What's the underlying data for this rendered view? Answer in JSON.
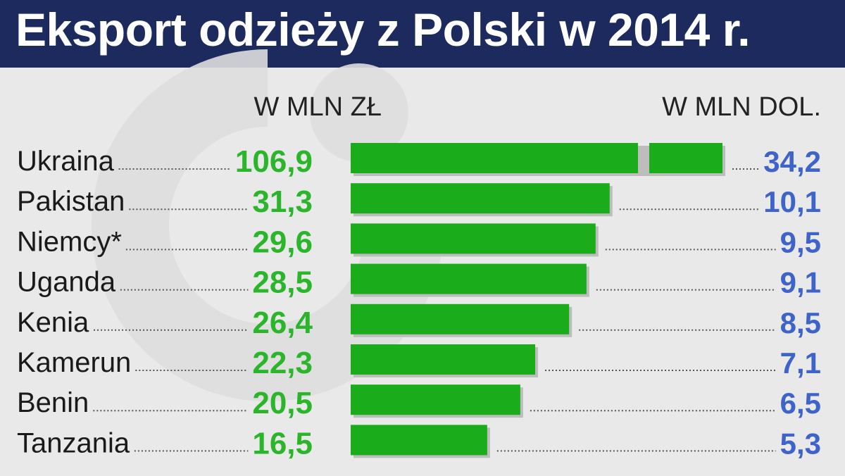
{
  "header": {
    "title": "Eksport odzieży z Polski w 2014 r."
  },
  "colors": {
    "header_bg": "#1c2a5e",
    "bar": "#1aac1a",
    "pln_value": "#2bb52b",
    "usd_value": "#3e63c9",
    "background": "#e9e9e9"
  },
  "chart_data": {
    "type": "bar",
    "orientation": "horizontal",
    "columns": {
      "left_label": "W MLN ZŁ",
      "right_label": "W MLN DOL."
    },
    "categories": [
      "Ukraina",
      "Pakistan",
      "Niemcy*",
      "Uganda",
      "Kenia",
      "Kamerun",
      "Benin",
      "Tanzania"
    ],
    "values_pln": [
      "106,9",
      "31,3",
      "29,6",
      "28,5",
      "26,4",
      "22,3",
      "20,5",
      "16,5"
    ],
    "values_usd": [
      "34,2",
      "10,1",
      "9,5",
      "9,1",
      "8,5",
      "7,1",
      "6,5",
      "5,3"
    ],
    "values": [
      106.9,
      31.3,
      29.6,
      28.5,
      26.4,
      22.3,
      20.5,
      16.5
    ],
    "axis_break": {
      "first_bar": true
    },
    "grid": false,
    "legend": "none"
  }
}
